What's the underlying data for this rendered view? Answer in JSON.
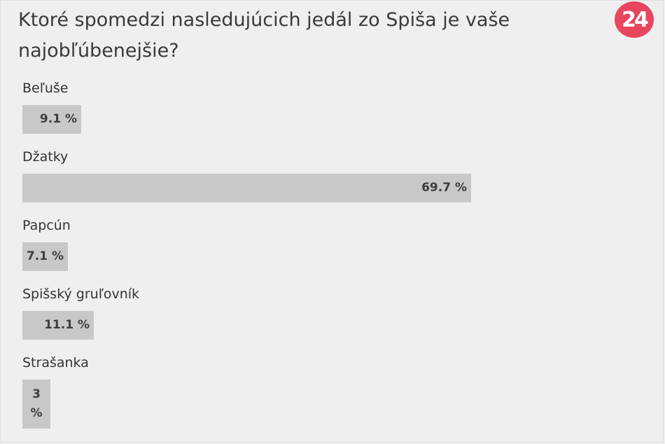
{
  "poll": {
    "question": "Ktoré spomedzi nasledujúcich jedál zo Spiša je vaše najobľúbenejšie?",
    "logo_text": "24",
    "brand_color": "#e8465f",
    "bar_color": "#c8c8c8",
    "options": [
      {
        "label": "Beľuše",
        "percent": 9.1,
        "percent_text": "9.1 %"
      },
      {
        "label": "Džatky",
        "percent": 69.7,
        "percent_text": "69.7 %"
      },
      {
        "label": "Papcún",
        "percent": 7.1,
        "percent_text": "7.1 %"
      },
      {
        "label": "Spišský gruľovník",
        "percent": 11.1,
        "percent_text": "11.1 %"
      },
      {
        "label": "Strašanka",
        "percent": 3,
        "percent_text": "3 %"
      }
    ]
  }
}
